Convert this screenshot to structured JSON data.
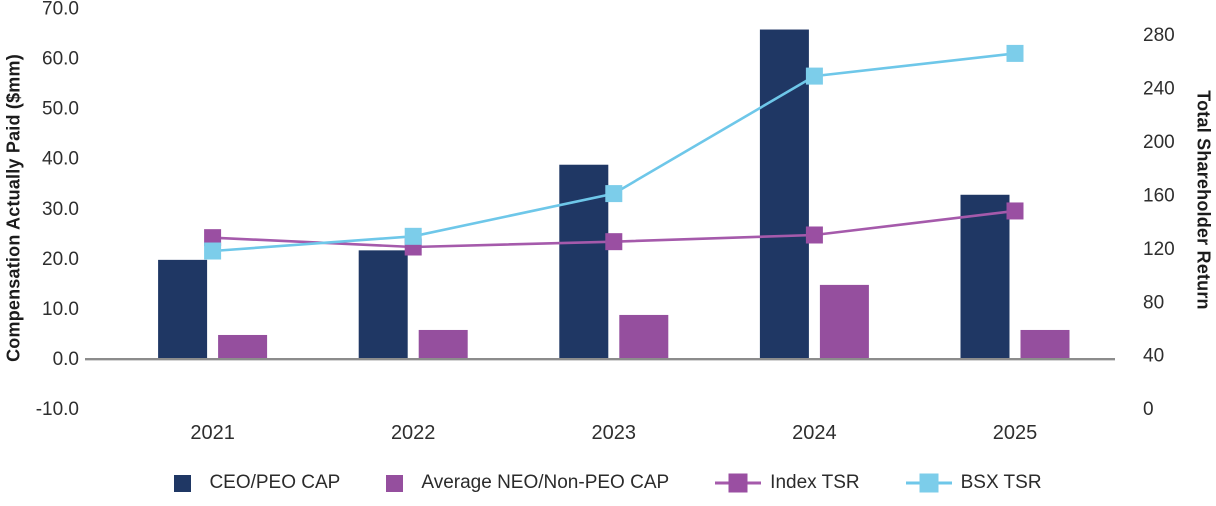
{
  "chart_data": {
    "type": "combo-bar-line-dual-axis",
    "categories": [
      "2021",
      "2022",
      "2023",
      "2024",
      "2025"
    ],
    "bar_series": [
      {
        "name": "CEO/PEO CAP",
        "axis": "left",
        "color": "#1f3764",
        "values": [
          19.7,
          21.6,
          38.7,
          65.7,
          32.7
        ]
      },
      {
        "name": "Average NEO/Non-PEO CAP",
        "axis": "left",
        "color": "#954f9e",
        "values": [
          4.7,
          5.7,
          8.7,
          14.7,
          5.7
        ]
      }
    ],
    "line_series": [
      {
        "name": "Index TSR",
        "axis": "right",
        "line_color": "#a55aab",
        "marker_color": "#9a4fa2",
        "values": [
          128,
          121,
          125,
          130,
          148
        ]
      },
      {
        "name": "BSX TSR",
        "axis": "right",
        "line_color": "#6ec7e9",
        "marker_color": "#7ccdea",
        "values": [
          118,
          129,
          161,
          249,
          266
        ]
      }
    ],
    "left_axis": {
      "title": "Compensation Actually Paid ($mm)",
      "min": -10,
      "max": 70,
      "step": 10,
      "tick_labels_top_to_bottom": [
        "70.0",
        "60.0",
        "50.0",
        "40.0",
        "30.0",
        "20.0",
        "10.0",
        "0.0",
        "-10.0"
      ]
    },
    "right_axis": {
      "title": "Total Shareholder Return",
      "min": 0,
      "scale_max": 300,
      "step": 40,
      "tick_labels_top_to_bottom": [
        "280",
        "240",
        "200",
        "160",
        "120",
        "80",
        "40",
        "0"
      ]
    },
    "legend_position": "bottom",
    "grid": false,
    "axis_line_color": "#8c8c8c",
    "text_color": "#2e2e2e"
  }
}
